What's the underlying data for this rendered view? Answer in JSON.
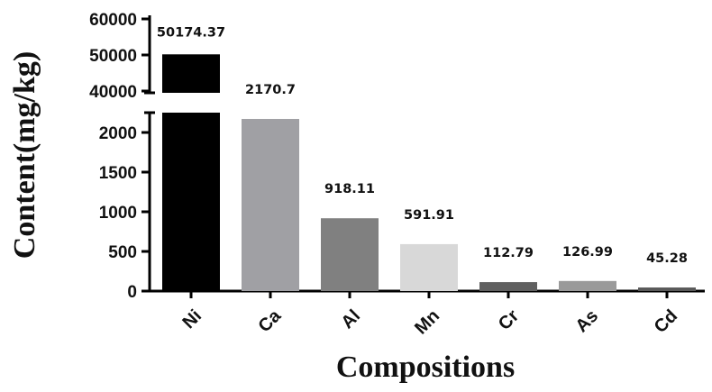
{
  "chart_data": {
    "type": "bar",
    "title": "",
    "xlabel": "Compositions",
    "ylabel": "Content(mg/kg)",
    "categories": [
      "Ni",
      "Ca",
      "Al",
      "Mn",
      "Cr",
      "As",
      "Cd"
    ],
    "values": [
      50174.37,
      2170.7,
      918.11,
      591.91,
      112.79,
      126.99,
      45.28
    ],
    "value_labels": [
      "50174.37",
      "2170.7",
      "918.11",
      "591.91",
      "112.79",
      "126.99",
      "45.28"
    ],
    "bar_colors": [
      "#000000",
      "#a0a0a4",
      "#808080",
      "#d8d8d8",
      "#606060",
      "#9a9a9a",
      "#5a5a5a"
    ],
    "y_axis_break": true,
    "lower_segment": {
      "ylim": [
        0,
        2250
      ],
      "ticks": [
        0,
        500,
        1000,
        1500,
        2000
      ]
    },
    "upper_segment": {
      "ylim": [
        39500,
        61000
      ],
      "ticks": [
        40000,
        50000,
        60000
      ]
    },
    "tick_labels": [
      "0",
      "500",
      "1000",
      "1500",
      "2000",
      "40000",
      "50000",
      "60000"
    ],
    "grid": false,
    "legend": "none"
  }
}
